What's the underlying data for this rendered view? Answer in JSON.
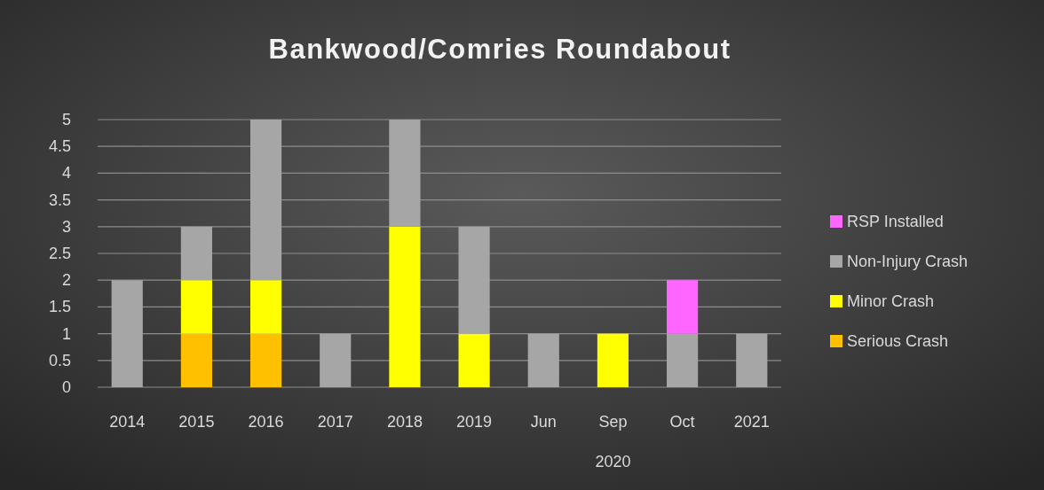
{
  "chart_data": {
    "type": "bar",
    "title": "Bankwood/Comries Roundabout",
    "stacked": true,
    "categories": [
      "2014",
      "2015",
      "2016",
      "2017",
      "2018",
      "2019",
      "Jun",
      "Sep",
      "Oct",
      "2021"
    ],
    "series": [
      {
        "name": "Serious Crash",
        "color": "#ffc000",
        "values": [
          null,
          1,
          1,
          null,
          null,
          null,
          null,
          null,
          null,
          null
        ]
      },
      {
        "name": "Minor Crash",
        "color": "#ffff00",
        "values": [
          null,
          1,
          1,
          null,
          3,
          1,
          null,
          1,
          null,
          null
        ]
      },
      {
        "name": "Non-Injury Crash",
        "color": "#a6a6a6",
        "values": [
          2,
          1,
          3,
          1,
          2,
          2,
          1,
          null,
          1,
          1
        ]
      },
      {
        "name": "RSP Installed",
        "color": "#ff66ff",
        "values": [
          null,
          null,
          null,
          null,
          null,
          null,
          null,
          null,
          1,
          null
        ]
      }
    ],
    "ylim": [
      0,
      5
    ],
    "yticks": [
      0,
      0.5,
      1,
      1.5,
      2,
      2.5,
      3,
      3.5,
      4,
      4.5,
      5
    ],
    "grid": "y",
    "legend": "right",
    "annotations": [
      "2020"
    ]
  }
}
